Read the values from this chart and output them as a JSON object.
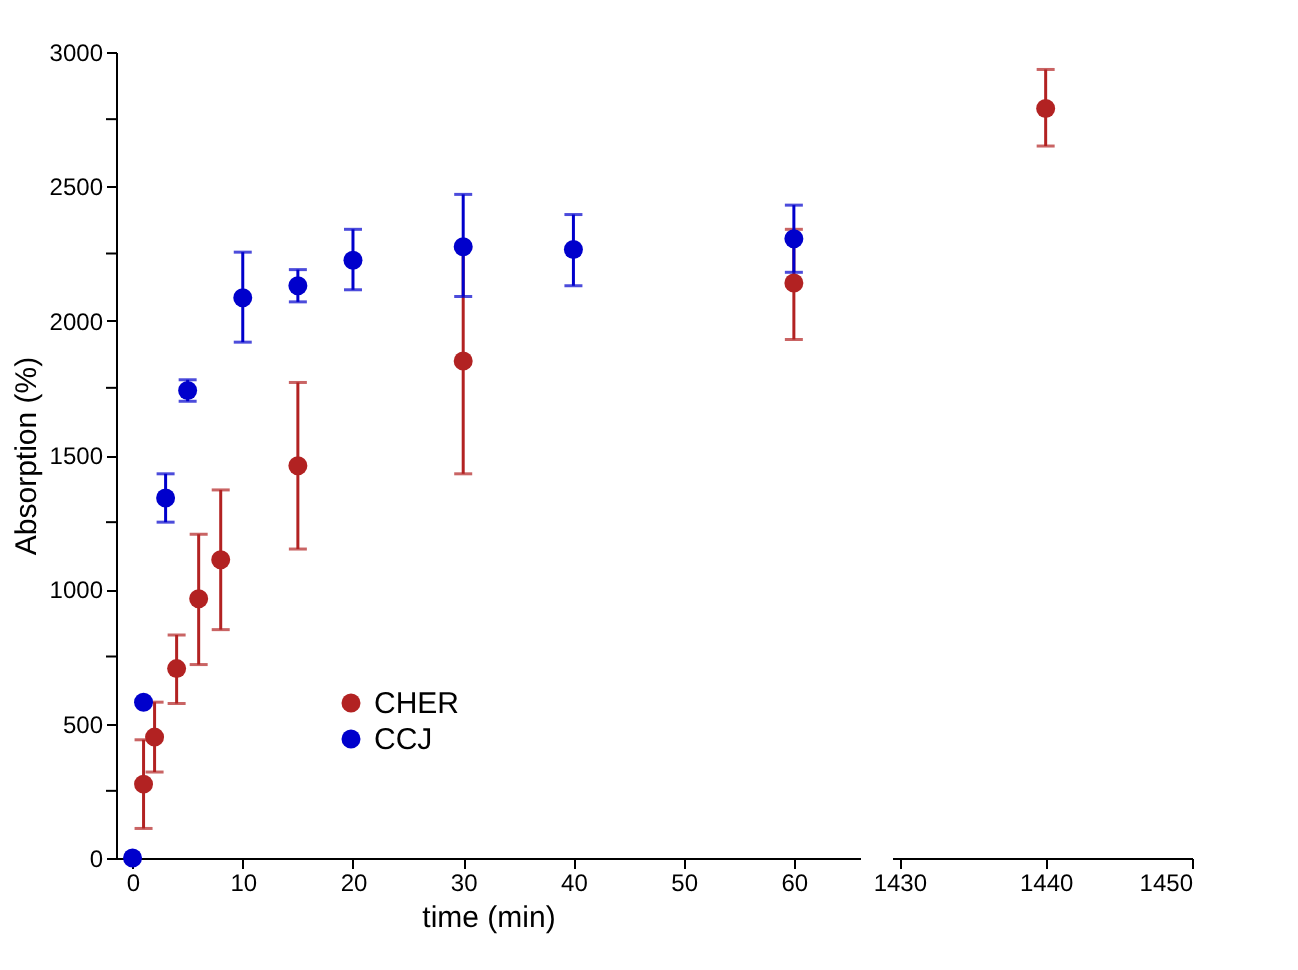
{
  "chart_data": [
    {
      "type": "scatter",
      "xlabel": "time (min)",
      "ylabel": "Absorption (%)",
      "xlim": [
        -1.5,
        66
      ],
      "ylim": [
        0,
        3000
      ],
      "xticks": [
        0,
        10,
        20,
        30,
        40,
        50,
        60
      ],
      "yticks": [
        0,
        {
          "value": 250,
          "label": null
        },
        500,
        {
          "value": 750,
          "label": null
        },
        1000,
        {
          "value": 1250,
          "label": null
        },
        1500,
        {
          "value": 1750,
          "label": null
        },
        2000,
        {
          "value": 2250,
          "label": null
        },
        2500,
        {
          "value": 2750,
          "label": null
        },
        3000
      ],
      "grid": false,
      "legend": "bottom left",
      "marker": "circle",
      "series": [
        {
          "name": "CHER",
          "color": "#b22222",
          "x": [
            1,
            2,
            4,
            6,
            8,
            15,
            30,
            60
          ],
          "values": [
            275,
            450,
            705,
            965,
            1110,
            1460,
            1850,
            2140
          ],
          "errors": [
            [
              110,
              440
            ],
            [
              320,
              580
            ],
            [
              575,
              830
            ],
            [
              720,
              1205
            ],
            [
              850,
              1370
            ],
            [
              1150,
              1770
            ],
            [
              1430,
              2270
            ],
            [
              1930,
              2340
            ]
          ]
        },
        {
          "name": "CCJ",
          "color": "#0000cc",
          "x": [
            0,
            1,
            3,
            5,
            10,
            15,
            20,
            30,
            40,
            60
          ],
          "values": [
            0,
            580,
            1340,
            1740,
            2085,
            2130,
            2225,
            2275,
            2265,
            2305
          ],
          "errors": [
            null,
            null,
            [
              1250,
              1430
            ],
            [
              1700,
              1780
            ],
            [
              1920,
              2255
            ],
            [
              2070,
              2190
            ],
            [
              2115,
              2340
            ],
            [
              2090,
              2470
            ],
            [
              2130,
              2395
            ],
            [
              2180,
              2430
            ]
          ]
        }
      ]
    },
    {
      "type": "scatter",
      "xlim": [
        1429.5,
        1450
      ],
      "ylim": [
        0,
        3000
      ],
      "xticks": [
        1430,
        1440,
        1450
      ],
      "tick_labels": "x",
      "grid": false,
      "marker": "circle",
      "series": [
        {
          "color": "#b22222",
          "x": [
            1440
          ],
          "values": [
            2790
          ],
          "errors": [
            [
              2650,
              2935
            ]
          ]
        }
      ]
    }
  ]
}
